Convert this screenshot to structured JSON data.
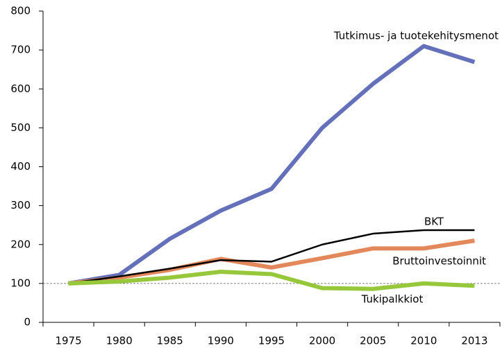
{
  "chart_data": {
    "type": "line",
    "categories": [
      "1975",
      "1980",
      "1985",
      "1990",
      "1995",
      "2000",
      "2005",
      "2010",
      "2013"
    ],
    "series": [
      {
        "name": "Tutkimus- ja tuotekehitysmenot",
        "color": "#6470b9",
        "values": [
          100,
          122,
          215,
          287,
          343,
          500,
          613,
          710,
          669
        ]
      },
      {
        "name": "Bruttoinvestoinnit",
        "color": "#e2885b",
        "values": [
          100,
          115,
          135,
          163,
          141,
          165,
          190,
          190,
          210
        ]
      },
      {
        "name": "BKT",
        "color": "#000000",
        "values": [
          100,
          118,
          138,
          160,
          156,
          200,
          228,
          237,
          237
        ]
      },
      {
        "name": "Tukipalkkiot",
        "color": "#97c83c",
        "values": [
          100,
          105,
          115,
          130,
          124,
          88,
          86,
          100,
          94
        ]
      }
    ],
    "ylim": [
      0,
      800
    ],
    "yticks": [
      0,
      100,
      200,
      300,
      400,
      500,
      600,
      700,
      800
    ],
    "reference_line": 100,
    "grid": false
  }
}
